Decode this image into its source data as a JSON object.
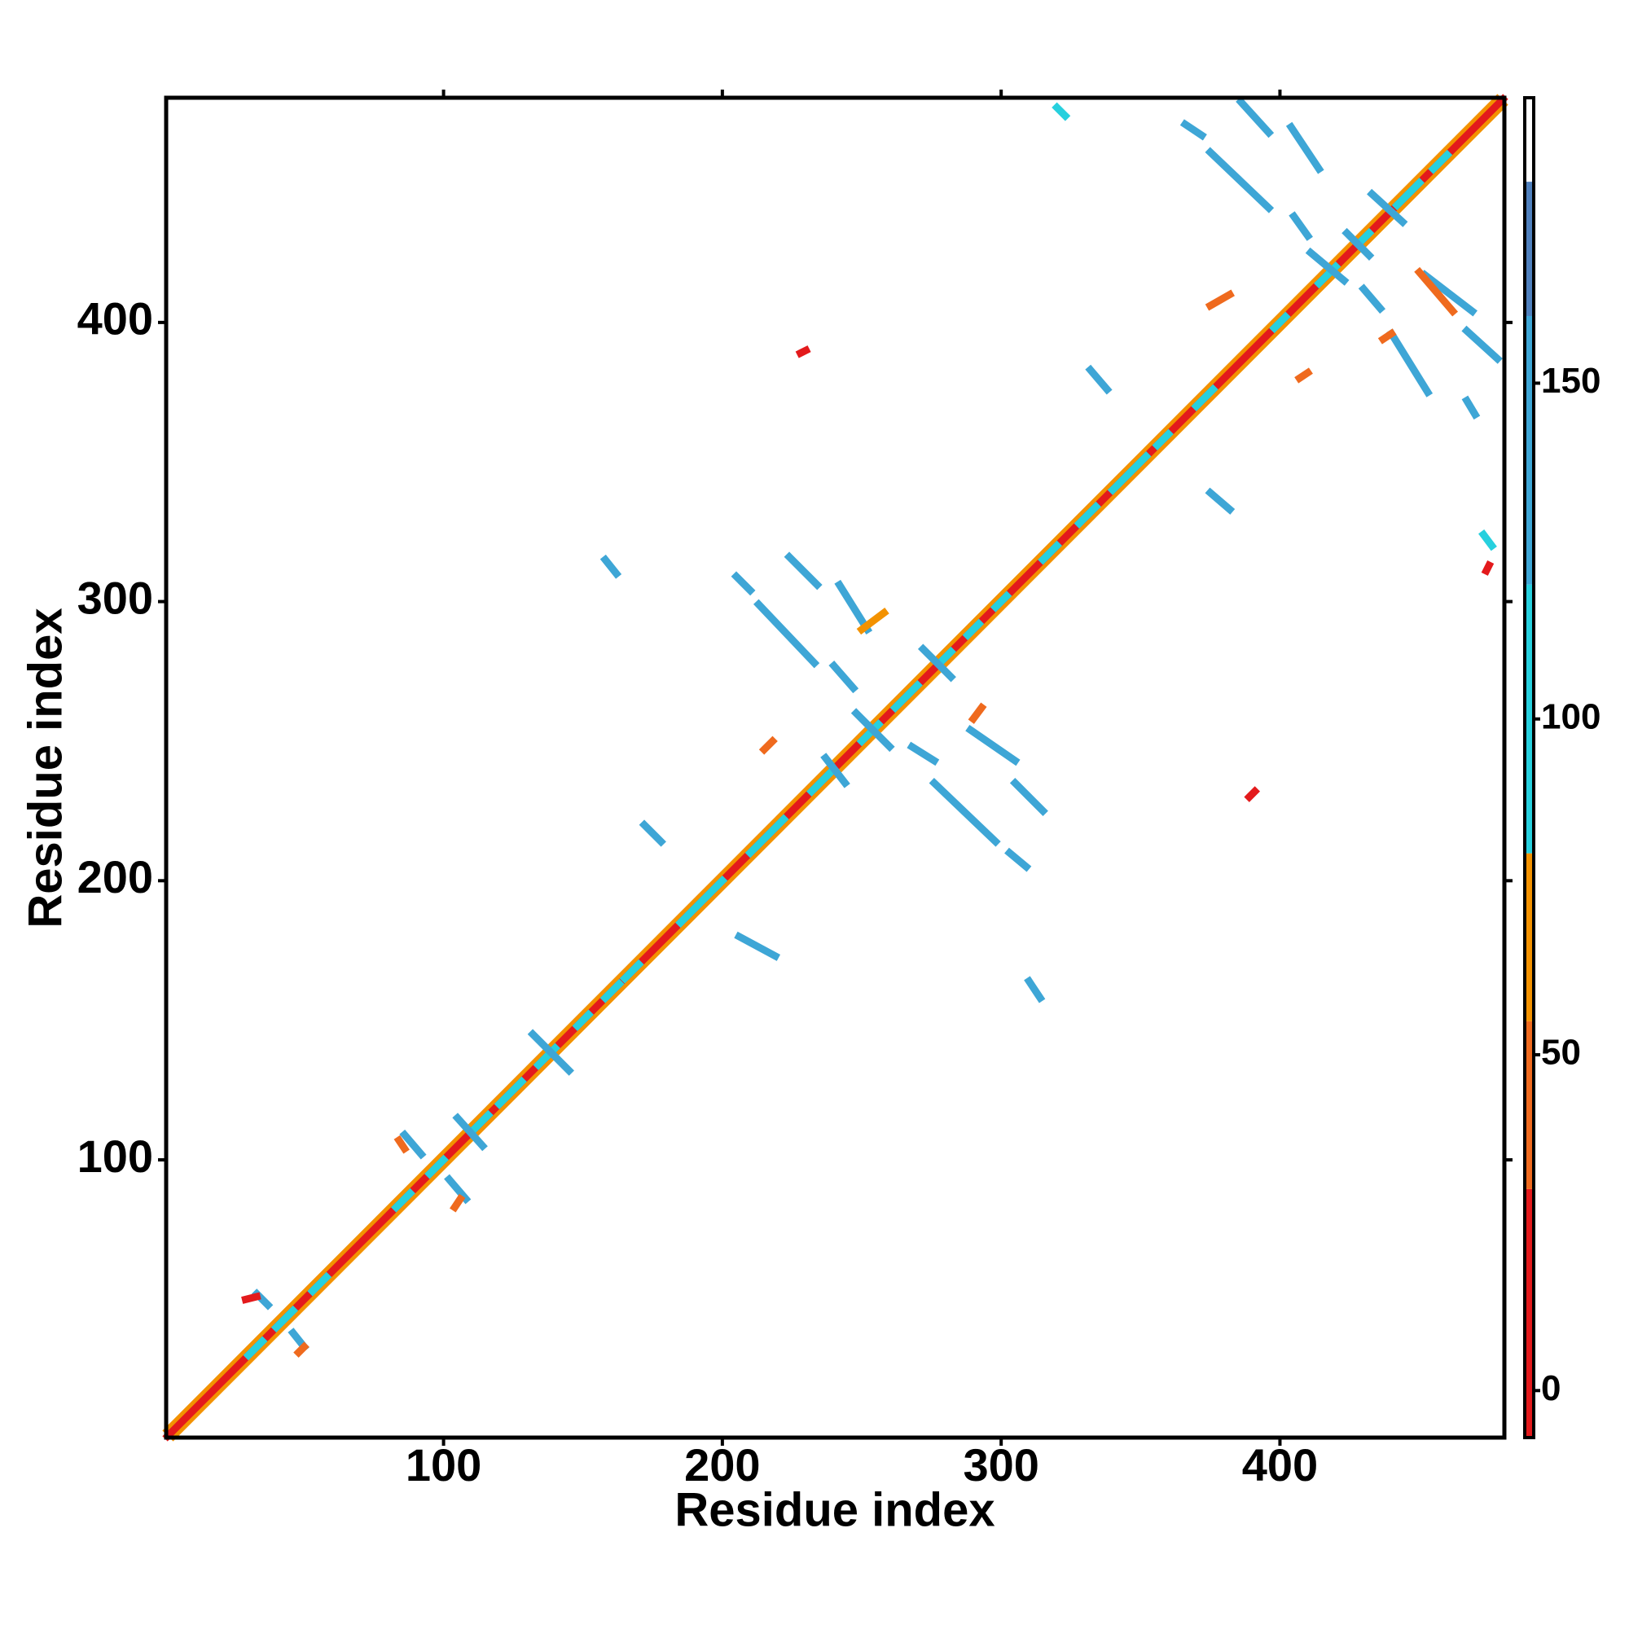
{
  "chart_data": {
    "type": "contact-map",
    "xlabel": "Residue index",
    "ylabel": "Residue index",
    "xlim": [
      0.5,
      480.5
    ],
    "ylim": [
      0.5,
      480.5
    ],
    "xticks": [
      100,
      200,
      300,
      400
    ],
    "yticks": [
      100,
      200,
      300,
      400
    ],
    "clim": [
      -7,
      192.5
    ],
    "cticks": [
      0,
      50,
      100,
      150
    ],
    "color_levels": [
      {
        "min": -7,
        "max": 30,
        "color": "#e31a1c"
      },
      {
        "min": 30,
        "max": 55,
        "color": "#ef6a1e"
      },
      {
        "min": 55,
        "max": 80,
        "color": "#f39200"
      },
      {
        "min": 80,
        "max": 120,
        "color": "#27d0de"
      },
      {
        "min": 120,
        "max": 160,
        "color": "#3ea6d6"
      },
      {
        "min": 160,
        "max": 180,
        "color": "#4f80bd"
      },
      {
        "min": 180,
        "max": 192.5,
        "color": "#ffffff"
      }
    ],
    "segments": [
      {
        "x": [
          1,
          478
        ],
        "y": [
          3,
          480
        ],
        "value": 60
      },
      {
        "x": [
          3,
          480
        ],
        "y": [
          1,
          478
        ],
        "value": 60
      },
      {
        "x": [
          1,
          480
        ],
        "y": [
          1,
          480
        ],
        "value": 10
      },
      {
        "x": [
          30,
          35
        ],
        "y": [
          30,
          35
        ],
        "value": 110
      },
      {
        "x": [
          40,
          46
        ],
        "y": [
          40,
          46
        ],
        "value": 110
      },
      {
        "x": [
          53,
          58
        ],
        "y": [
          53,
          58
        ],
        "value": 110
      },
      {
        "x": [
          83,
          88
        ],
        "y": [
          83,
          88
        ],
        "value": 110
      },
      {
        "x": [
          95,
          100
        ],
        "y": [
          95,
          100
        ],
        "value": 110
      },
      {
        "x": [
          110,
          116
        ],
        "y": [
          110,
          116
        ],
        "value": 110
      },
      {
        "x": [
          120,
          128
        ],
        "y": [
          120,
          128
        ],
        "value": 110
      },
      {
        "x": [
          134,
          140
        ],
        "y": [
          134,
          140
        ],
        "value": 110
      },
      {
        "x": [
          148,
          152
        ],
        "y": [
          148,
          152
        ],
        "value": 110
      },
      {
        "x": [
          158,
          163
        ],
        "y": [
          158,
          163
        ],
        "value": 110
      },
      {
        "x": [
          165,
          170
        ],
        "y": [
          165,
          170
        ],
        "value": 110
      },
      {
        "x": [
          185,
          200
        ],
        "y": [
          185,
          200
        ],
        "value": 110
      },
      {
        "x": [
          210,
          222
        ],
        "y": [
          210,
          222
        ],
        "value": 110
      },
      {
        "x": [
          232,
          240
        ],
        "y": [
          232,
          240
        ],
        "value": 110
      },
      {
        "x": [
          250,
          256
        ],
        "y": [
          250,
          256
        ],
        "value": 110
      },
      {
        "x": [
          262,
          270
        ],
        "y": [
          262,
          270
        ],
        "value": 110
      },
      {
        "x": [
          278,
          282
        ],
        "y": [
          278,
          282
        ],
        "value": 110
      },
      {
        "x": [
          288,
          292
        ],
        "y": [
          288,
          292
        ],
        "value": 110
      },
      {
        "x": [
          298,
          302
        ],
        "y": [
          298,
          302
        ],
        "value": 110
      },
      {
        "x": [
          315,
          320
        ],
        "y": [
          315,
          320
        ],
        "value": 110
      },
      {
        "x": [
          328,
          334
        ],
        "y": [
          328,
          334
        ],
        "value": 110
      },
      {
        "x": [
          340,
          352
        ],
        "y": [
          340,
          352
        ],
        "value": 110
      },
      {
        "x": [
          356,
          360
        ],
        "y": [
          356,
          360
        ],
        "value": 110
      },
      {
        "x": [
          370,
          376
        ],
        "y": [
          370,
          376
        ],
        "value": 110
      },
      {
        "x": [
          398,
          402
        ],
        "y": [
          398,
          402
        ],
        "value": 110
      },
      {
        "x": [
          414,
          420
        ],
        "y": [
          414,
          420
        ],
        "value": 110
      },
      {
        "x": [
          428,
          432
        ],
        "y": [
          428,
          432
        ],
        "value": 110
      },
      {
        "x": [
          442,
          450
        ],
        "y": [
          442,
          450
        ],
        "value": 110
      },
      {
        "x": [
          455,
          460
        ],
        "y": [
          455,
          460
        ],
        "value": 110
      },
      {
        "x": [
          33,
          37
        ],
        "y": [
          52,
          48
        ],
        "value": 140
      },
      {
        "x": [
          46,
          50
        ],
        "y": [
          38,
          33
        ],
        "value": 140
      },
      {
        "x": [
          86,
          92
        ],
        "y": [
          109,
          102
        ],
        "value": 140
      },
      {
        "x": [
          102,
          108
        ],
        "y": [
          93,
          86
        ],
        "value": 140
      },
      {
        "x": [
          105,
          114
        ],
        "y": [
          115,
          105
        ],
        "value": 130
      },
      {
        "x": [
          132,
          145
        ],
        "y": [
          145,
          132
        ],
        "value": 140
      },
      {
        "x": [
          158,
          162
        ],
        "y": [
          315,
          310
        ],
        "value": 140
      },
      {
        "x": [
          172,
          178
        ],
        "y": [
          220,
          214
        ],
        "value": 140
      },
      {
        "x": [
          205,
          210
        ],
        "y": [
          309,
          304
        ],
        "value": 140
      },
      {
        "x": [
          206,
          219
        ],
        "y": [
          180,
          173
        ],
        "value": 140
      },
      {
        "x": [
          224,
          234
        ],
        "y": [
          316,
          306
        ],
        "value": 140
      },
      {
        "x": [
          213,
          233
        ],
        "y": [
          299,
          278
        ],
        "value": 140
      },
      {
        "x": [
          242,
          252
        ],
        "y": [
          306,
          290
        ],
        "value": 140
      },
      {
        "x": [
          240,
          247
        ],
        "y": [
          277,
          269
        ],
        "value": 140
      },
      {
        "x": [
          272,
          282
        ],
        "y": [
          283,
          273
        ],
        "value": 140
      },
      {
        "x": [
          237,
          244
        ],
        "y": [
          244,
          235
        ],
        "value": 140
      },
      {
        "x": [
          248,
          260
        ],
        "y": [
          260,
          248
        ],
        "value": 140
      },
      {
        "x": [
          289,
          305
        ],
        "y": [
          254,
          243
        ],
        "value": 140
      },
      {
        "x": [
          268,
          276
        ],
        "y": [
          248,
          243
        ],
        "value": 140
      },
      {
        "x": [
          276,
          298
        ],
        "y": [
          235,
          214
        ],
        "value": 140
      },
      {
        "x": [
          305,
          315
        ],
        "y": [
          235,
          225
        ],
        "value": 140
      },
      {
        "x": [
          303,
          309
        ],
        "y": [
          210,
          205
        ],
        "value": 140
      },
      {
        "x": [
          310,
          314
        ],
        "y": [
          164,
          158
        ],
        "value": 140
      },
      {
        "x": [
          320,
          323
        ],
        "y": [
          477,
          474
        ],
        "value": 110
      },
      {
        "x": [
          366,
          372
        ],
        "y": [
          471,
          467
        ],
        "value": 140
      },
      {
        "x": [
          375,
          396
        ],
        "y": [
          461,
          441
        ],
        "value": 140
      },
      {
        "x": [
          386,
          396
        ],
        "y": [
          479,
          468
        ],
        "value": 140
      },
      {
        "x": [
          404,
          414
        ],
        "y": [
          470,
          455
        ],
        "value": 140
      },
      {
        "x": [
          405,
          410
        ],
        "y": [
          438,
          431
        ],
        "value": 140
      },
      {
        "x": [
          411,
          423
        ],
        "y": [
          425,
          415
        ],
        "value": 130
      },
      {
        "x": [
          430,
          436
        ],
        "y": [
          412,
          405
        ],
        "value": 140
      },
      {
        "x": [
          452,
          469
        ],
        "y": [
          417,
          404
        ],
        "value": 140
      },
      {
        "x": [
          440,
          453
        ],
        "y": [
          396,
          375
        ],
        "value": 140
      },
      {
        "x": [
          467,
          478
        ],
        "y": [
          397,
          387
        ],
        "value": 140
      },
      {
        "x": [
          467,
          470
        ],
        "y": [
          372,
          367
        ],
        "value": 140
      },
      {
        "x": [
          332,
          338
        ],
        "y": [
          383,
          376
        ],
        "value": 140
      },
      {
        "x": [
          375,
          382
        ],
        "y": [
          339,
          333
        ],
        "value": 140
      },
      {
        "x": [
          473,
          476
        ],
        "y": [
          324,
          320
        ],
        "value": 110
      },
      {
        "x": [
          433,
          444
        ],
        "y": [
          446,
          436
        ],
        "value": 140
      },
      {
        "x": [
          424,
          432
        ],
        "y": [
          432,
          424
        ],
        "value": 140
      },
      {
        "x": [
          29,
          33
        ],
        "y": [
          50,
          51
        ],
        "value": 20
      },
      {
        "x": [
          48,
          50
        ],
        "y": [
          31,
          33
        ],
        "value": 45
      },
      {
        "x": [
          84,
          86
        ],
        "y": [
          107,
          104
        ],
        "value": 45
      },
      {
        "x": [
          104,
          106
        ],
        "y": [
          83,
          86
        ],
        "value": 45
      },
      {
        "x": [
          250,
          258
        ],
        "y": [
          290,
          296
        ],
        "value": 60
      },
      {
        "x": [
          215,
          218
        ],
        "y": [
          247,
          250
        ],
        "value": 45
      },
      {
        "x": [
          437,
          440
        ],
        "y": [
          394,
          396
        ],
        "value": 45
      },
      {
        "x": [
          450,
          462
        ],
        "y": [
          418,
          404
        ],
        "value": 45
      },
      {
        "x": [
          407,
          410
        ],
        "y": [
          380,
          382
        ],
        "value": 45
      },
      {
        "x": [
          375,
          382
        ],
        "y": [
          406,
          410
        ],
        "value": 45
      },
      {
        "x": [
          389,
          391
        ],
        "y": [
          230,
          232
        ],
        "value": 15
      },
      {
        "x": [
          474,
          475
        ],
        "y": [
          311,
          313
        ],
        "value": 15
      },
      {
        "x": [
          228,
          230
        ],
        "y": [
          389,
          390
        ],
        "value": 15
      },
      {
        "x": [
          290,
          293
        ],
        "y": [
          258,
          262
        ],
        "value": 45
      }
    ]
  }
}
